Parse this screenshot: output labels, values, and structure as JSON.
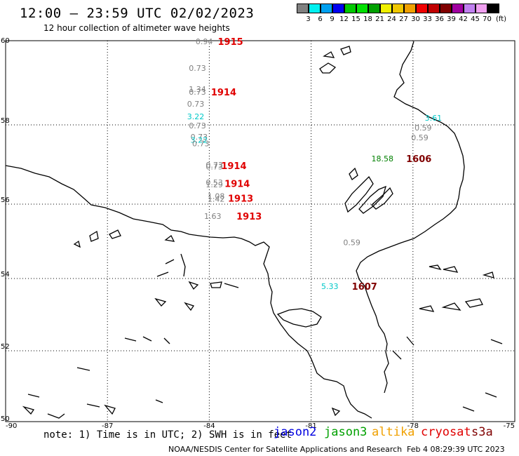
{
  "header": {
    "title": "12:00 — 23:59 UTC 02/02/2023",
    "subtitle": "12 hour collection of altimeter wave heights"
  },
  "colorbar": {
    "unit": "(ft)",
    "entries": [
      {
        "label": "3",
        "color": "#808080"
      },
      {
        "label": "6",
        "color": "#00f0f0"
      },
      {
        "label": "9",
        "color": "#00a0f0"
      },
      {
        "label": "12",
        "color": "#0000f0"
      },
      {
        "label": "15",
        "color": "#00c800"
      },
      {
        "label": "18",
        "color": "#00e000"
      },
      {
        "label": "21",
        "color": "#00a000"
      },
      {
        "label": "24",
        "color": "#f0f000"
      },
      {
        "label": "27",
        "color": "#f0c800"
      },
      {
        "label": "30",
        "color": "#f0a000"
      },
      {
        "label": "33",
        "color": "#f00000"
      },
      {
        "label": "36",
        "color": "#c00000"
      },
      {
        "label": "39",
        "color": "#800000"
      },
      {
        "label": "42",
        "color": "#a000a0"
      },
      {
        "label": "45",
        "color": "#c080f0"
      },
      {
        "label": "70",
        "color": "#f0a0f0"
      },
      {
        "label": "",
        "color": "#000000"
      }
    ]
  },
  "map": {
    "lat_labels": [
      "60",
      "58",
      "56",
      "54",
      "52",
      "50"
    ],
    "lon_labels": [
      "-90",
      "-87",
      "-84",
      "-81",
      "-78",
      "-75"
    ],
    "swh_values": [
      {
        "text": "0.94",
        "color": "#808080",
        "lon": -84.15,
        "lat": 59.98
      },
      {
        "text": "0.73",
        "color": "#808080",
        "lon": -84.35,
        "lat": 59.35
      },
      {
        "text": "1.34",
        "color": "#808080",
        "lon": -84.35,
        "lat": 58.85
      },
      {
        "text": "0.73",
        "color": "#808080",
        "lon": -84.35,
        "lat": 58.78
      },
      {
        "text": "0.73",
        "color": "#808080",
        "lon": -84.4,
        "lat": 58.5
      },
      {
        "text": "3.22",
        "color": "#00c8c8",
        "lon": -84.4,
        "lat": 58.2
      },
      {
        "text": "0.73",
        "color": "#808080",
        "lon": -84.35,
        "lat": 57.98
      },
      {
        "text": "0.73",
        "color": "#808080",
        "lon": -84.3,
        "lat": 57.7
      },
      {
        "text": "3.22",
        "color": "#00c8c8",
        "lon": -84.3,
        "lat": 57.62
      },
      {
        "text": "0.73",
        "color": "#808080",
        "lon": -84.25,
        "lat": 57.53
      },
      {
        "text": "0.73",
        "color": "#808080",
        "lon": -83.85,
        "lat": 56.99
      },
      {
        "text": "0.73",
        "color": "#808080",
        "lon": -83.85,
        "lat": 56.95
      },
      {
        "text": "0.53",
        "color": "#808080",
        "lon": -83.85,
        "lat": 56.55
      },
      {
        "text": "1.29",
        "color": "#808080",
        "lon": -83.85,
        "lat": 56.5
      },
      {
        "text": "1.08",
        "color": "#808080",
        "lon": -83.8,
        "lat": 56.2
      },
      {
        "text": "1.42",
        "color": "#808080",
        "lon": -83.8,
        "lat": 56.13
      },
      {
        "text": "1.63",
        "color": "#808080",
        "lon": -83.9,
        "lat": 55.68
      },
      {
        "text": "3.61",
        "color": "#00c8c8",
        "lon": -77.4,
        "lat": 58.17
      },
      {
        "text": "0.59",
        "color": "#808080",
        "lon": -77.7,
        "lat": 57.93
      },
      {
        "text": "0.59",
        "color": "#808080",
        "lon": -77.8,
        "lat": 57.68
      },
      {
        "text": "18.58",
        "color": "#008000",
        "lon": -78.9,
        "lat": 57.15
      },
      {
        "text": "0.59",
        "color": "#808080",
        "lon": -79.8,
        "lat": 54.97
      },
      {
        "text": "5.33",
        "color": "#00c8c8",
        "lon": -80.45,
        "lat": 53.79
      }
    ],
    "time_labels": [
      {
        "text": "1915",
        "color": "#e00000",
        "lon": -83.75,
        "lat": 59.98
      },
      {
        "text": "1914",
        "color": "#e00000",
        "lon": -83.95,
        "lat": 58.78
      },
      {
        "text": "1914",
        "color": "#e00000",
        "lon": -83.65,
        "lat": 56.97
      },
      {
        "text": "1914",
        "color": "#e00000",
        "lon": -83.55,
        "lat": 56.52
      },
      {
        "text": "1913",
        "color": "#e00000",
        "lon": -83.45,
        "lat": 56.15
      },
      {
        "text": "1913",
        "color": "#e00000",
        "lon": -83.2,
        "lat": 55.68
      },
      {
        "text": "1606",
        "color": "#800000",
        "lon": -78.2,
        "lat": 57.15
      },
      {
        "text": "1607",
        "color": "#800000",
        "lon": -79.8,
        "lat": 53.79
      }
    ]
  },
  "footer": {
    "note": "note: 1) Time is in UTC; 2) SWH is in feet",
    "satellites": [
      {
        "name": "jason2",
        "color": "#0000e0"
      },
      {
        "name": "jason3",
        "color": "#00a000"
      },
      {
        "name": "altika",
        "color": "#f0a000"
      },
      {
        "name": "cryosat",
        "color": "#e00000"
      },
      {
        "name": "s3a",
        "color": "#800000"
      }
    ],
    "credit": "NOAA/NESDIS Center for Satellite Applications and Research",
    "timestamp": "Feb  4 08:29:39 UTC 2023"
  }
}
